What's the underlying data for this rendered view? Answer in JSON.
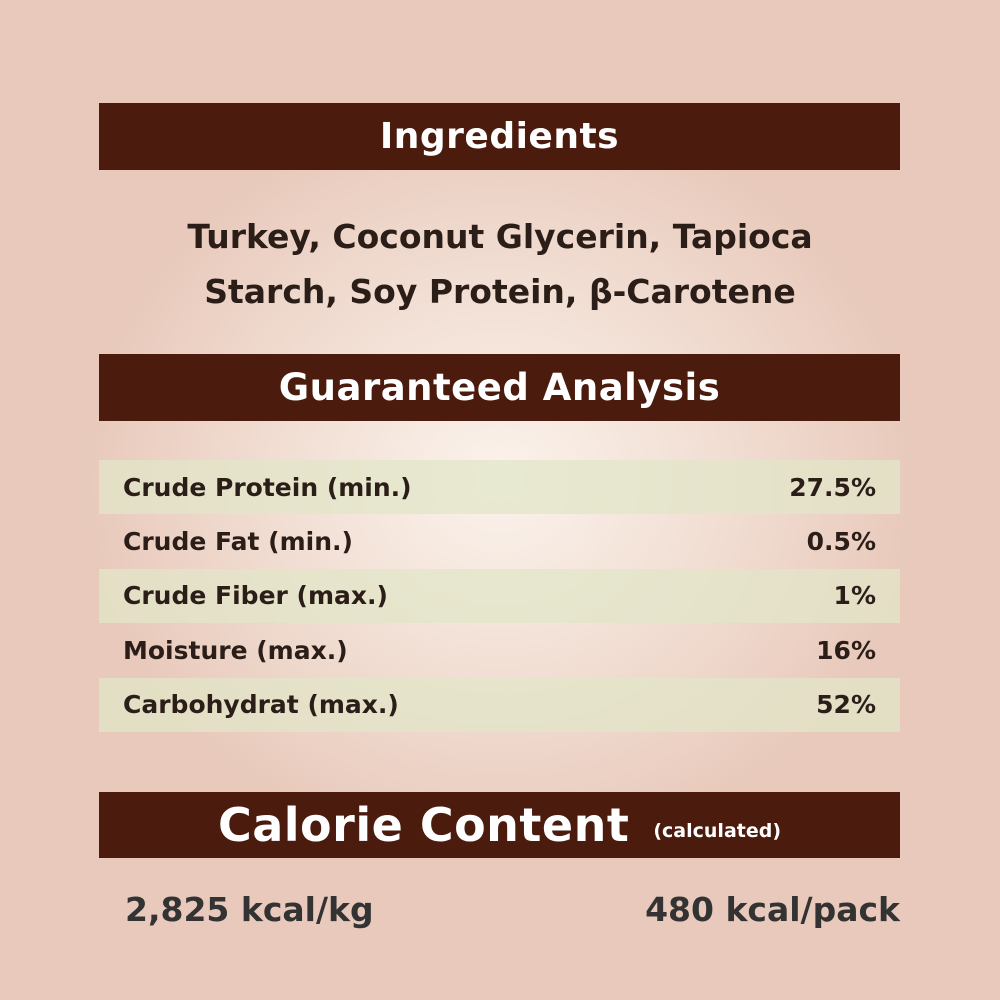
{
  "ingredients": {
    "title": "Ingredients",
    "line1": "Turkey, Coconut Glycerin, Tapioca",
    "line2": "Starch, Soy Protein, β-Carotene"
  },
  "analysis": {
    "title": "Guaranteed Analysis",
    "rows": [
      {
        "label": "Crude Protein (min.)",
        "value": "27.5%"
      },
      {
        "label": "Crude Fat (min.)",
        "value": "0.5%"
      },
      {
        "label": "Crude Fiber (max.)",
        "value": "1%"
      },
      {
        "label": "Moisture (max.)",
        "value": "16%"
      },
      {
        "label": "Carbohydrat (max.)",
        "value": "52%"
      }
    ]
  },
  "calories": {
    "title": "Calorie Content",
    "subtitle": "(calculated)",
    "per_kg": "2,825 kcal/kg",
    "per_pack": "480 kcal/pack"
  },
  "colors": {
    "header_bg": "#4b1b0e",
    "stripe": "#e2e6c8",
    "background": "#f1ddd2"
  }
}
